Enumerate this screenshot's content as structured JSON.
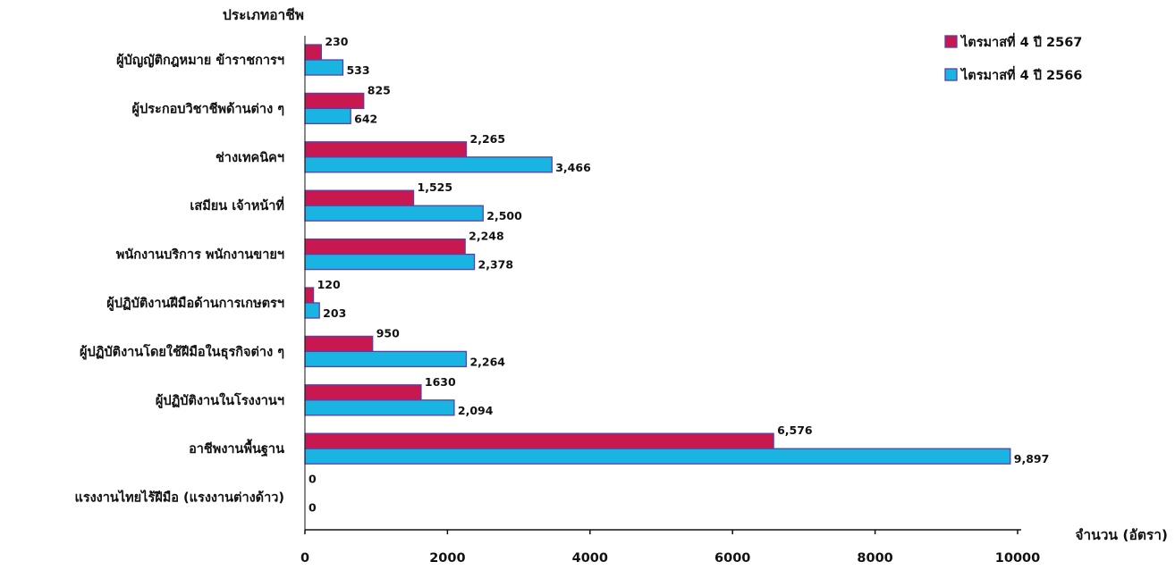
{
  "chart_data": {
    "type": "bar",
    "orientation": "horizontal",
    "ylabel": "ประเภทอาชีพ",
    "xlabel": "จำนวน (อัตรา)",
    "xlim": [
      0,
      10000
    ],
    "xticks": [
      0,
      2000,
      4000,
      6000,
      8000,
      10000
    ],
    "grid": false,
    "legend_position": "top-right",
    "categories": [
      "ผู้บัญญัติกฎหมาย ข้าราชการฯ",
      "ผู้ประกอบวิชาชีพด้านต่าง ๆ",
      "ช่างเทคนิคฯ",
      "เสมียน เจ้าหน้าที่",
      "พนักงานบริการ พนักงานขายฯ",
      "ผู้ปฏิบัติงานฝีมือด้านการเกษตรฯ",
      "ผู้ปฏิบัติงานโดยใช้ฝีมือในธุรกิจต่าง ๆ",
      "ผู้ปฏิบัติงานในโรงงานฯ",
      "อาชีพงานพื้นฐาน",
      "แรงงานไทยไร้ฝีมือ (แรงงานต่างด้าว)"
    ],
    "series": [
      {
        "name": "ไตรมาสที่ 4 ปี 2567",
        "color": "#c8184f",
        "values": [
          230,
          825,
          2265,
          1525,
          2248,
          120,
          950,
          1630,
          6576,
          0
        ],
        "labels": [
          "230",
          "825",
          "2,265",
          "1,525",
          "2,248",
          "120",
          "950",
          "1630",
          "6,576",
          "0"
        ]
      },
      {
        "name": "ไตรมาสที่ 4 ปี 2566",
        "color": "#1ab4e3",
        "values": [
          533,
          642,
          3466,
          2500,
          2378,
          203,
          2264,
          2094,
          9897,
          0
        ],
        "labels": [
          "533",
          "642",
          "3,466",
          "2,500",
          "2,378",
          "203",
          "2,264",
          "2,094",
          "9,897",
          "0"
        ]
      }
    ],
    "colors": {
      "bar_border": "#5b3fa6",
      "axis": "#111111"
    }
  }
}
